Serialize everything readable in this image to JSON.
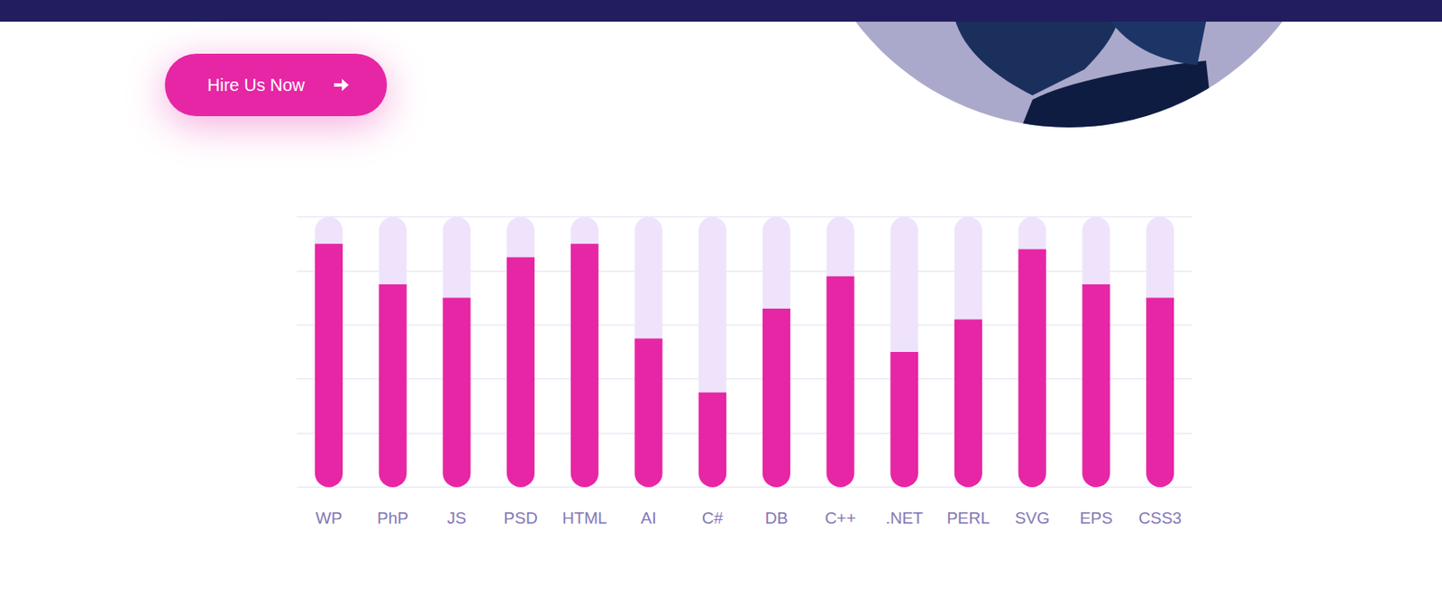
{
  "button": {
    "label": "Hire Us Now"
  },
  "chart_data": {
    "type": "bar",
    "categories": [
      "WP",
      "PhP",
      "JS",
      "PSD",
      "HTML",
      "AI",
      "C#",
      "DB",
      "C++",
      ".NET",
      "PERL",
      "SVG",
      "EPS",
      "CSS3"
    ],
    "values": [
      90,
      75,
      70,
      85,
      90,
      55,
      35,
      66,
      78,
      50,
      62,
      88,
      75,
      70
    ],
    "color": "#e626a5",
    "ylim": [
      0,
      100
    ],
    "yticks": [
      0,
      20,
      40,
      60,
      80,
      100
    ],
    "grid": true,
    "tick_labels": "x"
  }
}
